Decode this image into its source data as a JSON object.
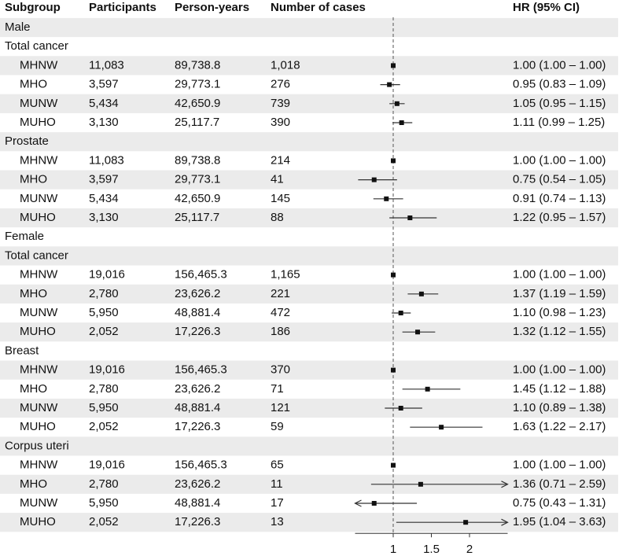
{
  "chart_data": {
    "type": "forest",
    "columns": [
      "Subgroup",
      "Participants",
      "Person-years",
      "Number of cases",
      "HR (95% CI)"
    ],
    "xlim": [
      0.5,
      2.5
    ],
    "xticks": [
      1,
      1.5,
      2
    ],
    "reference": 1,
    "rows": [
      {
        "label": "Male"
      },
      {
        "label": "Total cancer"
      },
      {
        "label": "MHNW",
        "participants": "11,083",
        "person_years": "89,738.8",
        "cases": "1,018",
        "hr": 1.0,
        "ci": [
          1.0,
          1.0
        ],
        "hr_label": "1.00 (1.00 – 1.00)"
      },
      {
        "label": "MHO",
        "participants": "3,597",
        "person_years": "29,773.1",
        "cases": "276",
        "hr": 0.95,
        "ci": [
          0.83,
          1.09
        ],
        "hr_label": "0.95 (0.83 – 1.09)"
      },
      {
        "label": "MUNW",
        "participants": "5,434",
        "person_years": "42,650.9",
        "cases": "739",
        "hr": 1.05,
        "ci": [
          0.95,
          1.15
        ],
        "hr_label": "1.05 (0.95 – 1.15)"
      },
      {
        "label": "MUHO",
        "participants": "3,130",
        "person_years": "25,117.7",
        "cases": "390",
        "hr": 1.11,
        "ci": [
          0.99,
          1.25
        ],
        "hr_label": "1.11 (0.99 – 1.25)"
      },
      {
        "label": "Prostate"
      },
      {
        "label": "MHNW",
        "participants": "11,083",
        "person_years": "89,738.8",
        "cases": "214",
        "hr": 1.0,
        "ci": [
          1.0,
          1.0
        ],
        "hr_label": "1.00 (1.00 – 1.00)"
      },
      {
        "label": "MHO",
        "participants": "3,597",
        "person_years": "29,773.1",
        "cases": "41",
        "hr": 0.75,
        "ci": [
          0.54,
          1.05
        ],
        "hr_label": "0.75 (0.54 – 1.05)"
      },
      {
        "label": "MUNW",
        "participants": "5,434",
        "person_years": "42,650.9",
        "cases": "145",
        "hr": 0.91,
        "ci": [
          0.74,
          1.13
        ],
        "hr_label": "0.91 (0.74 – 1.13)"
      },
      {
        "label": "MUHO",
        "participants": "3,130",
        "person_years": "25,117.7",
        "cases": "88",
        "hr": 1.22,
        "ci": [
          0.95,
          1.57
        ],
        "hr_label": "1.22 (0.95 – 1.57)"
      },
      {
        "label": "Female"
      },
      {
        "label": "Total cancer"
      },
      {
        "label": "MHNW",
        "participants": "19,016",
        "person_years": "156,465.3",
        "cases": "1,165",
        "hr": 1.0,
        "ci": [
          1.0,
          1.0
        ],
        "hr_label": "1.00 (1.00 – 1.00)"
      },
      {
        "label": "MHO",
        "participants": "2,780",
        "person_years": "23,626.2",
        "cases": "221",
        "hr": 1.37,
        "ci": [
          1.19,
          1.59
        ],
        "hr_label": "1.37 (1.19 – 1.59)"
      },
      {
        "label": "MUNW",
        "participants": "5,950",
        "person_years": "48,881.4",
        "cases": "472",
        "hr": 1.1,
        "ci": [
          0.98,
          1.23
        ],
        "hr_label": "1.10 (0.98 – 1.23)"
      },
      {
        "label": "MUHO",
        "participants": "2,052",
        "person_years": "17,226.3",
        "cases": "186",
        "hr": 1.32,
        "ci": [
          1.12,
          1.55
        ],
        "hr_label": "1.32 (1.12 – 1.55)"
      },
      {
        "label": "Breast"
      },
      {
        "label": "MHNW",
        "participants": "19,016",
        "person_years": "156,465.3",
        "cases": "370",
        "hr": 1.0,
        "ci": [
          1.0,
          1.0
        ],
        "hr_label": "1.00 (1.00 – 1.00)"
      },
      {
        "label": "MHO",
        "participants": "2,780",
        "person_years": "23,626.2",
        "cases": "71",
        "hr": 1.45,
        "ci": [
          1.12,
          1.88
        ],
        "hr_label": "1.45 (1.12 – 1.88)"
      },
      {
        "label": "MUNW",
        "participants": "5,950",
        "person_years": "48,881.4",
        "cases": "121",
        "hr": 1.1,
        "ci": [
          0.89,
          1.38
        ],
        "hr_label": "1.10 (0.89 – 1.38)"
      },
      {
        "label": "MUHO",
        "participants": "2,052",
        "person_years": "17,226.3",
        "cases": "59",
        "hr": 1.63,
        "ci": [
          1.22,
          2.17
        ],
        "hr_label": "1.63 (1.22 – 2.17)"
      },
      {
        "label": "Corpus uteri"
      },
      {
        "label": "MHNW",
        "participants": "19,016",
        "person_years": "156,465.3",
        "cases": "65",
        "hr": 1.0,
        "ci": [
          1.0,
          1.0
        ],
        "hr_label": "1.00 (1.00 – 1.00)"
      },
      {
        "label": "MHO",
        "participants": "2,780",
        "person_years": "23,626.2",
        "cases": "11",
        "hr": 1.36,
        "ci": [
          0.71,
          2.59
        ],
        "hr_label": "1.36 (0.71 – 2.59)"
      },
      {
        "label": "MUNW",
        "participants": "5,950",
        "person_years": "48,881.4",
        "cases": "17",
        "hr": 0.75,
        "ci": [
          0.43,
          1.31
        ],
        "hr_label": "0.75 (0.43 – 1.31)"
      },
      {
        "label": "MUHO",
        "participants": "2,052",
        "person_years": "17,226.3",
        "cases": "13",
        "hr": 1.95,
        "ci": [
          1.04,
          3.63
        ],
        "hr_label": "1.95 (1.04 – 3.63)"
      }
    ]
  }
}
